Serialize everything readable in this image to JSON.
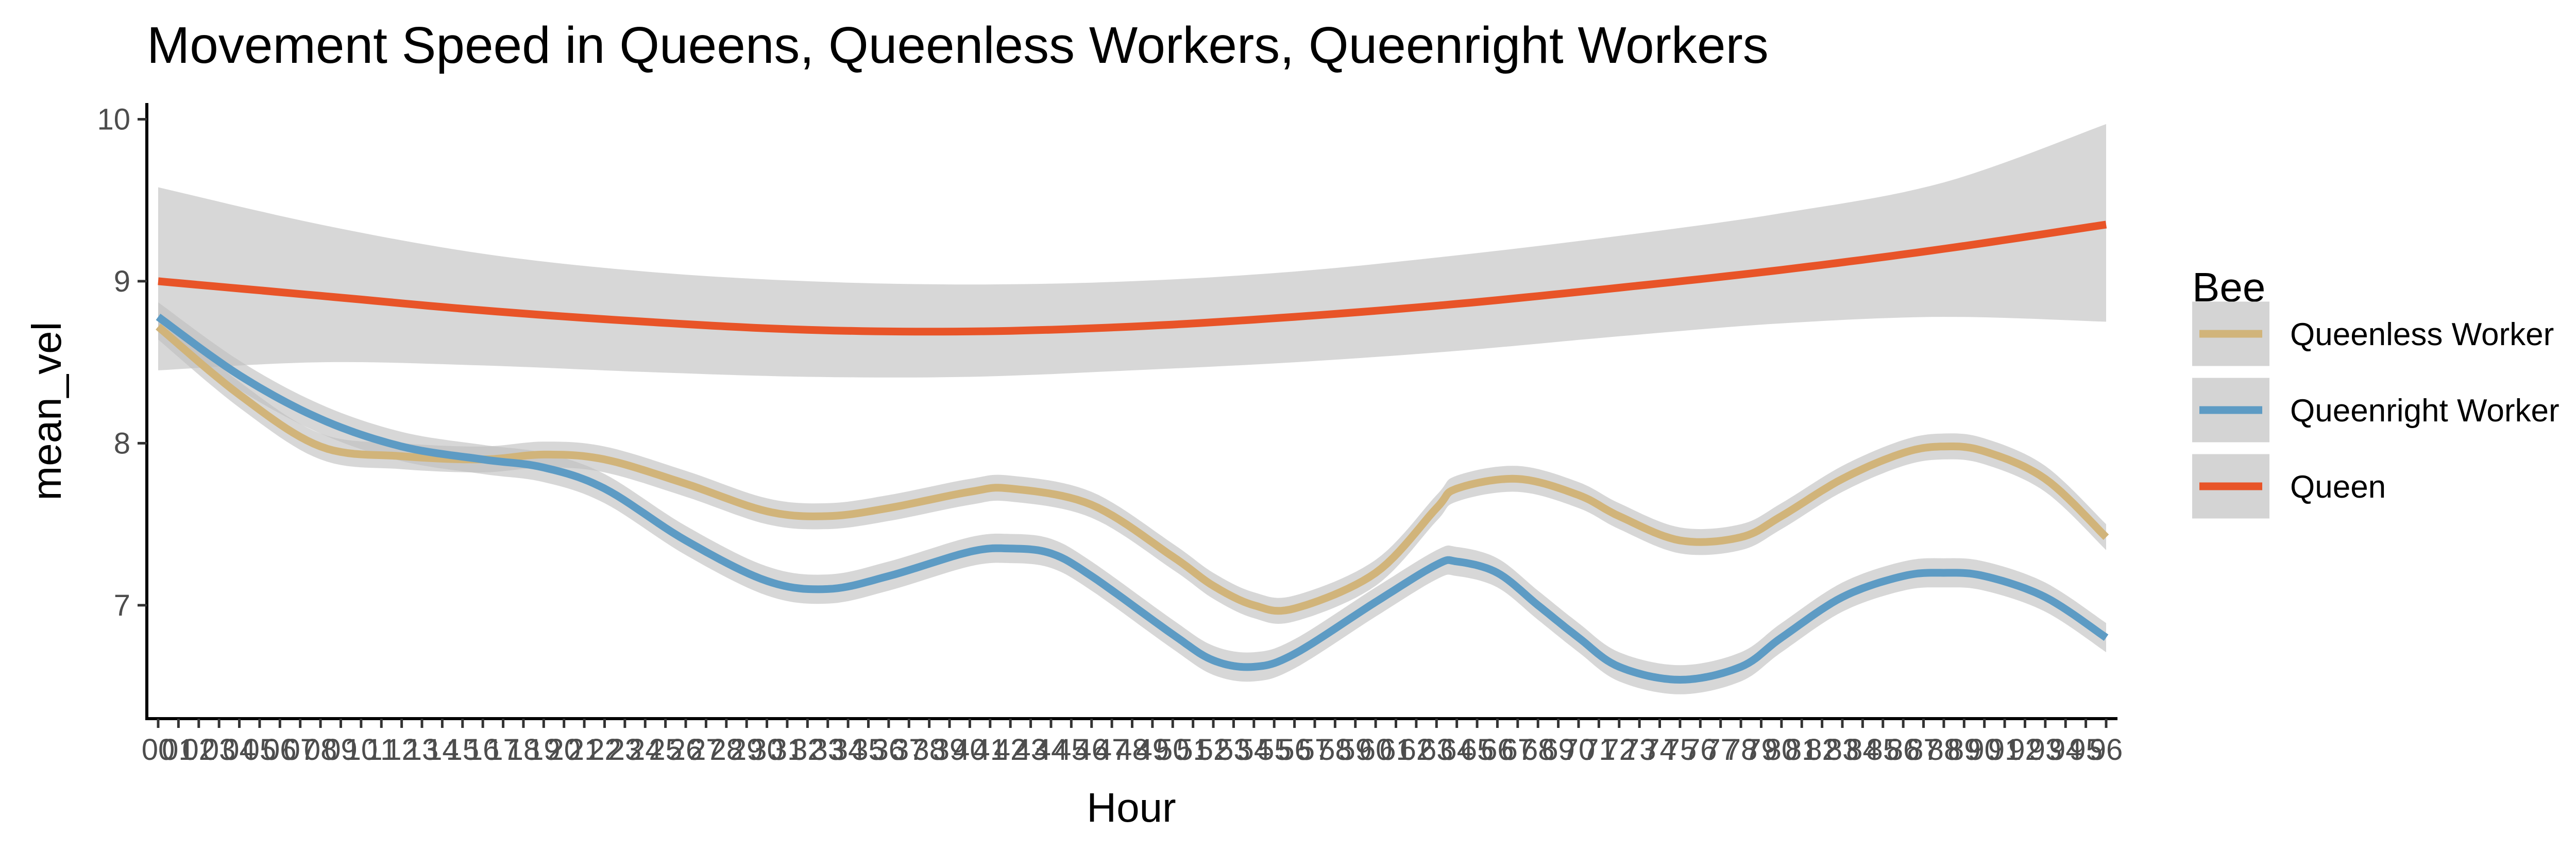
{
  "chart_data": {
    "type": "line",
    "title": "Movement Speed in Queens, Queenless Workers, Queenright Workers",
    "xlabel": "Hour",
    "ylabel": "mean_vel",
    "xlim": [
      0,
      96
    ],
    "ylim": [
      6.3,
      10.1
    ],
    "y_ticks": [
      7,
      8,
      9,
      10
    ],
    "x_tick_labels": [
      "00",
      "01",
      "02",
      "03",
      "04",
      "05",
      "06",
      "07",
      "08",
      "09",
      "10",
      "11",
      "12",
      "13",
      "14",
      "15",
      "16",
      "17",
      "18",
      "19",
      "20",
      "21",
      "22",
      "23",
      "24",
      "25",
      "26",
      "27",
      "28",
      "29",
      "30",
      "31",
      "32",
      "33",
      "34",
      "35",
      "36",
      "37",
      "38",
      "39",
      "40",
      "41",
      "42",
      "43",
      "44",
      "45",
      "46",
      "47",
      "48",
      "49",
      "50",
      "51",
      "52",
      "53",
      "54",
      "55",
      "56",
      "57",
      "58",
      "59",
      "60",
      "61",
      "62",
      "63",
      "64",
      "65",
      "66",
      "67",
      "68",
      "69",
      "70",
      "71",
      "72",
      "73",
      "74",
      "75",
      "76",
      "77",
      "78",
      "79",
      "80",
      "81",
      "82",
      "83",
      "84",
      "85",
      "86",
      "87",
      "88",
      "89",
      "90",
      "91",
      "92",
      "93",
      "94",
      "95",
      "96"
    ],
    "legend": {
      "title": "Bee",
      "position": "right"
    },
    "grid": false,
    "series": [
      {
        "name": "Queenless Worker",
        "color": "#d1b47a",
        "x": [
          0,
          4,
          8,
          12,
          16,
          19,
          22,
          26,
          30,
          33,
          36,
          40,
          42,
          46,
          50,
          52,
          54,
          56,
          60,
          63,
          64,
          67,
          70,
          72,
          75,
          78,
          80,
          83,
          86,
          88,
          90,
          93,
          96
        ],
        "y": [
          8.72,
          8.3,
          7.98,
          7.92,
          7.9,
          7.93,
          7.9,
          7.75,
          7.58,
          7.55,
          7.6,
          7.7,
          7.72,
          7.62,
          7.3,
          7.12,
          7.0,
          6.98,
          7.2,
          7.6,
          7.72,
          7.78,
          7.68,
          7.55,
          7.4,
          7.42,
          7.55,
          7.78,
          7.94,
          7.98,
          7.95,
          7.78,
          7.42
        ],
        "ci_halfwidth": 0.08
      },
      {
        "name": "Queenright Worker",
        "color": "#5d9bc4",
        "x": [
          0,
          4,
          8,
          12,
          16,
          19,
          22,
          26,
          30,
          33,
          36,
          40,
          42,
          44,
          46,
          50,
          52,
          54,
          56,
          60,
          63,
          64,
          66,
          68,
          70,
          72,
          75,
          78,
          80,
          83,
          86,
          88,
          90,
          93,
          96
        ],
        "y": [
          8.78,
          8.42,
          8.15,
          7.98,
          7.9,
          7.85,
          7.72,
          7.4,
          7.15,
          7.1,
          7.18,
          7.33,
          7.35,
          7.32,
          7.18,
          6.82,
          6.66,
          6.62,
          6.7,
          7.02,
          7.25,
          7.27,
          7.2,
          7.0,
          6.8,
          6.62,
          6.54,
          6.62,
          6.8,
          7.05,
          7.18,
          7.2,
          7.18,
          7.05,
          6.8
        ],
        "ci_halfwidth": 0.09
      },
      {
        "name": "Queen",
        "color": "#e85428",
        "x": [
          0,
          8,
          16,
          24,
          32,
          40,
          48,
          56,
          64,
          72,
          80,
          88,
          96
        ],
        "y": [
          9.0,
          8.91,
          8.82,
          8.75,
          8.7,
          8.69,
          8.72,
          8.78,
          8.86,
          8.96,
          9.07,
          9.2,
          9.35
        ],
        "ci_lower": [
          8.45,
          8.5,
          8.48,
          8.44,
          8.41,
          8.41,
          8.45,
          8.5,
          8.57,
          8.66,
          8.74,
          8.78,
          8.75
        ],
        "ci_upper": [
          9.58,
          9.35,
          9.17,
          9.06,
          9.0,
          8.98,
          9.0,
          9.06,
          9.16,
          9.28,
          9.42,
          9.61,
          9.97
        ]
      }
    ]
  }
}
